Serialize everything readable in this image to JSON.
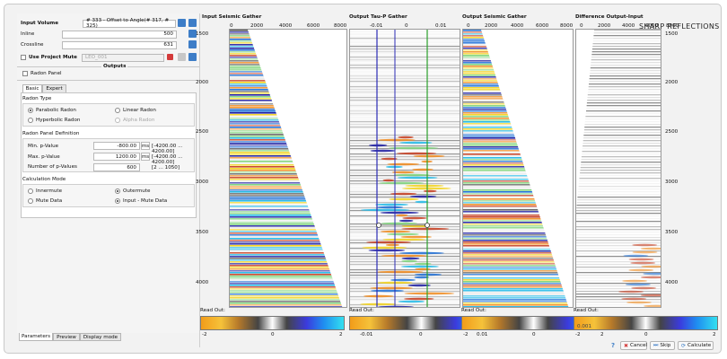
{
  "params": {
    "input_volume_label": "Input Volume",
    "input_volume_value": "# 333 - Offset to Angle(# 317, # 325)",
    "inline_label": "Inline",
    "inline_value": "500",
    "crossline_label": "Crossline",
    "crossline_value": "631",
    "use_project_mute_label": "Use Project Mute",
    "project_mute_value": "LEO_001",
    "outputs_label": "Outputs",
    "radon_panel_label": "Radon Panel",
    "tabs": [
      "Basic",
      "Expert"
    ],
    "radon_type_title": "Radon Type",
    "radon_types": [
      "Parabolic Radon",
      "Linear Radon",
      "Hyperbolic Radon",
      "Alpha Radon"
    ],
    "panel_def_title": "Radon Panel Definition",
    "min_p_label": "Min. p-Value",
    "min_p_value": "-800.00",
    "min_p_unit": "ms",
    "min_p_range": "[-4200.00 ... 4200.00]",
    "max_p_label": "Max. p-Value",
    "max_p_value": "1200.00",
    "max_p_unit": "ms",
    "max_p_range": "[-4200.00 ... 4200.00]",
    "num_p_label": "Number of p-Values",
    "num_p_value": "600",
    "num_p_range": "[2 ... 1050]",
    "calc_mode_title": "Calculation Mode",
    "calc_modes": [
      "Innermute",
      "Outermute",
      "Mute Data",
      "Input - Mute Data"
    ]
  },
  "bottom_tabs": [
    "Parameters",
    "Preview",
    "Display mode"
  ],
  "plots": [
    {
      "title": "Input Seismic Gather",
      "xticks": [
        "0",
        "2000",
        "4000",
        "6000",
        "8000"
      ]
    },
    {
      "title": "Output Tau-P Gather",
      "xticks": [
        "-0.01",
        "0",
        "0.01"
      ]
    },
    {
      "title": "Output Seismic Gather",
      "xticks": [
        "0",
        "2000",
        "4000",
        "6000",
        "8000"
      ]
    },
    {
      "title": "Difference Output-Input",
      "xticks": [
        "0",
        "2000",
        "4000",
        "6000",
        "8000"
      ]
    }
  ],
  "yticks": [
    "1500",
    "2000",
    "2500",
    "3000",
    "3500",
    "4000"
  ],
  "readouts": [
    {
      "label": "Read Out:",
      "ticks": [
        "-2",
        "0",
        "2"
      ]
    },
    {
      "label": "Read Out:",
      "ticks": [
        "-0.01",
        "0",
        "0.01"
      ]
    },
    {
      "label": "Read Out:",
      "ticks": [
        "-2",
        "0",
        "2"
      ]
    },
    {
      "label": "Read Out:",
      "ticks": [
        "-2",
        "0",
        "2"
      ]
    }
  ],
  "readout_values": [
    "",
    "",
    "",
    "0.001"
  ],
  "logo_text": "SHARP REFLECTIONS",
  "actions": {
    "help": "?",
    "cancel": "Cancel",
    "skip": "Skip",
    "calculate": "Calculate"
  },
  "colors": {
    "blue_accent": "#3d7dc7",
    "cancel_icon": "#d33a3a"
  }
}
